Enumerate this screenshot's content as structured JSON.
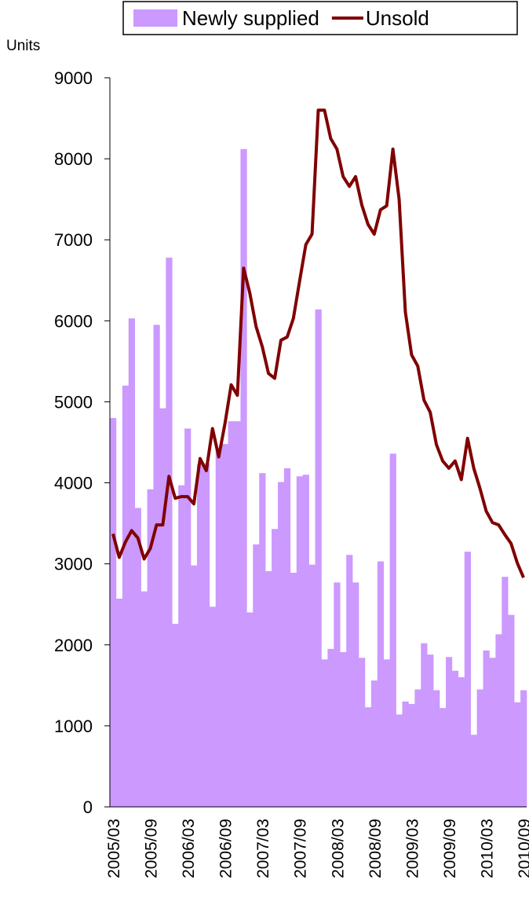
{
  "chart_data": {
    "type": "bar_line",
    "y_label": "Units",
    "categories": [
      "2005/03",
      null,
      null,
      null,
      null,
      null,
      "2005/09",
      null,
      null,
      null,
      null,
      null,
      "2006/03",
      null,
      null,
      null,
      null,
      null,
      "2006/09",
      null,
      null,
      null,
      null,
      null,
      "2007/03",
      null,
      null,
      null,
      null,
      null,
      "2007/09",
      null,
      null,
      null,
      null,
      null,
      "2008/03",
      null,
      null,
      null,
      null,
      null,
      "2008/09",
      null,
      null,
      null,
      null,
      null,
      "2009/03",
      null,
      null,
      null,
      null,
      null,
      "2009/09",
      null,
      null,
      null,
      null,
      null,
      "2010/03",
      null,
      null,
      null,
      null,
      null,
      "2010/09"
    ],
    "series": [
      {
        "name": "Newly supplied",
        "type": "bar",
        "color": "#cc99ff",
        "values": [
          4800,
          2570,
          5200,
          6030,
          3690,
          2660,
          3920,
          5950,
          4920,
          6780,
          2260,
          3970,
          4670,
          2980,
          4230,
          4240,
          2470,
          4400,
          4480,
          4760,
          4760,
          8120,
          2400,
          3240,
          4120,
          2910,
          3430,
          4010,
          4180,
          2890,
          4080,
          4100,
          2990,
          6140,
          1820,
          1950,
          2770,
          1910,
          3110,
          2770,
          1840,
          1230,
          1560,
          3030,
          1820,
          4360,
          1140,
          1300,
          1270,
          1450,
          2020,
          1880,
          1440,
          1220,
          1850,
          1680,
          1600,
          3150,
          890,
          1450,
          1930,
          1840,
          2130,
          2840,
          2370,
          1290,
          1440
        ]
      },
      {
        "name": "Unsold",
        "type": "line",
        "color": "#800000",
        "values": [
          3370,
          3080,
          3270,
          3410,
          3320,
          3060,
          3190,
          3480,
          3480,
          4080,
          3810,
          3830,
          3830,
          3740,
          4300,
          4150,
          4670,
          4320,
          4730,
          5210,
          5080,
          6650,
          6340,
          5930,
          5680,
          5350,
          5290,
          5760,
          5800,
          6030,
          6490,
          6940,
          7070,
          8600,
          8600,
          8250,
          8120,
          7780,
          7660,
          7780,
          7430,
          7190,
          7070,
          7370,
          7420,
          8120,
          7500,
          6110,
          5580,
          5440,
          5020,
          4870,
          4470,
          4270,
          4180,
          4270,
          4040,
          4550,
          4180,
          3930,
          3650,
          3510,
          3480,
          3360,
          3250,
          3010,
          2830
        ]
      }
    ],
    "ylim": [
      0,
      9000
    ],
    "yticks": [
      0,
      1000,
      2000,
      3000,
      4000,
      5000,
      6000,
      7000,
      8000,
      9000
    ],
    "grid": false
  }
}
